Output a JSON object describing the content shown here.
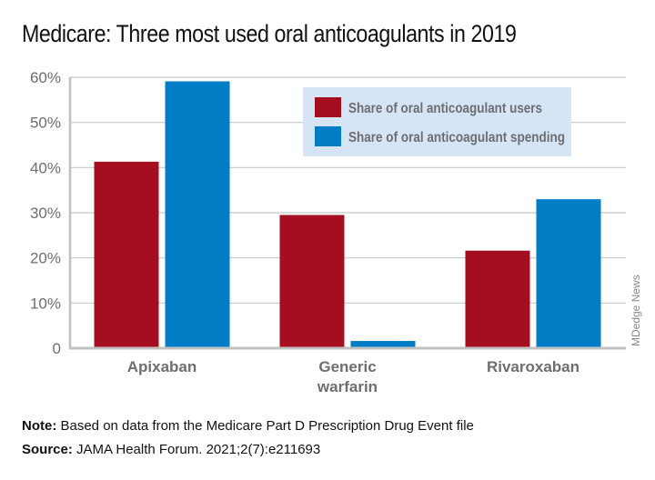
{
  "title": "Medicare: Three most used oral anticoagulants in 2019",
  "chart_data": {
    "type": "bar",
    "title": "Medicare: Three most used oral anticoagulants in 2019",
    "categories": [
      [
        "Apixaban"
      ],
      [
        "Generic",
        "warfarin"
      ],
      [
        "Rivaroxaban"
      ]
    ],
    "series": [
      {
        "name": "Share of oral anticoagulant users",
        "color": "#a50d21",
        "values": [
          41.3,
          29.5,
          21.6
        ]
      },
      {
        "name": "Share of oral anticoagulant spending",
        "color": "#007dc5",
        "values": [
          59.1,
          1.6,
          33.0
        ]
      }
    ],
    "xlabel": "",
    "ylabel": "",
    "ylim": [
      0,
      60
    ],
    "yticks": [
      0,
      10,
      20,
      30,
      40,
      50,
      60
    ],
    "ytick_labels": [
      "0",
      "10%",
      "20%",
      "30%",
      "40%",
      "50%",
      "60%"
    ],
    "grid": true,
    "legend_position": "top-right",
    "legend_background": "#d5e5f5"
  },
  "credit": "MDedge News",
  "footnotes": {
    "note_label": "Note:",
    "note_text": " Based on data from the Medicare Part D Prescription Drug Event file",
    "source_label": "Source:",
    "source_text": " JAMA Health Forum. 2021;2(7):e211693"
  }
}
